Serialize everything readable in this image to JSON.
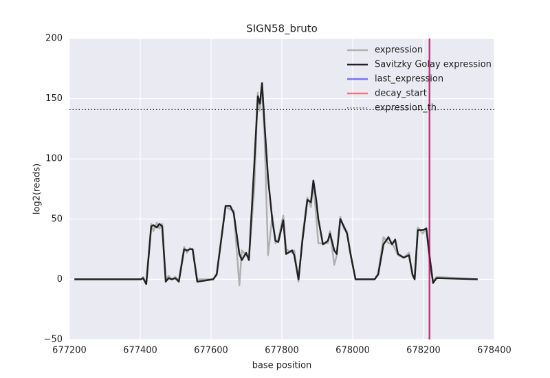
{
  "chart_data": {
    "type": "line",
    "title": "SIGN58_bruto",
    "xlabel": "base position",
    "ylabel": "log2(reads)",
    "xlim": [
      677200,
      678400
    ],
    "ylim": [
      -50,
      200
    ],
    "xticks": [
      677200,
      677400,
      677600,
      677800,
      678000,
      678200,
      678400
    ],
    "yticks": [
      {
        "value": -50,
        "label": "−50"
      },
      0,
      50,
      100,
      150,
      200
    ],
    "grid": true,
    "background": "#eaeaf2",
    "legend": "upper right",
    "series": [
      {
        "name": "expression",
        "color": "#b0b0b0",
        "width": 2.5,
        "dash": "none",
        "x": [
          677214,
          677402,
          677408,
          677417,
          677431,
          677437,
          677447,
          677454,
          677462,
          677472,
          677480,
          677489,
          677499,
          677509,
          677524,
          677532,
          677540,
          677548,
          677561,
          677606,
          677616,
          677641,
          677654,
          677664,
          677680,
          677687,
          677699,
          677707,
          677722,
          677732,
          677738,
          677744,
          677751,
          677761,
          677773,
          677782,
          677790,
          677804,
          677812,
          677829,
          677835,
          677847,
          677858,
          677872,
          677882,
          677889,
          677897,
          677903,
          677916,
          677930,
          677936,
          677948,
          677955,
          677965,
          677975,
          677984,
          677994,
          678008,
          678062,
          678072,
          678087,
          678101,
          678111,
          678120,
          678128,
          678144,
          678159,
          678169,
          678175,
          678184,
          678198,
          678208,
          678219,
          678227,
          678237,
          678353
        ],
        "values": [
          0,
          0,
          2,
          -3,
          46,
          40,
          47,
          42,
          46,
          0,
          3,
          0,
          2,
          -1,
          27,
          22,
          26,
          24,
          0,
          0,
          5,
          60,
          58,
          57,
          -5,
          24,
          20,
          18,
          75,
          155,
          140,
          160,
          120,
          20,
          53,
          30,
          33,
          53,
          25,
          22,
          24,
          -2,
          35,
          68,
          60,
          80,
          52,
          30,
          30,
          30,
          40,
          12,
          20,
          52,
          42,
          40,
          20,
          0,
          0,
          5,
          35,
          30,
          30,
          25,
          20,
          18,
          22,
          3,
          0,
          43,
          38,
          43,
          10,
          -2,
          2,
          0
        ]
      },
      {
        "name": "Savitzky Golay expression",
        "color": "#222222",
        "width": 2.5,
        "dash": "none",
        "x": [
          677214,
          677402,
          677408,
          677417,
          677431,
          677437,
          677447,
          677454,
          677462,
          677472,
          677480,
          677489,
          677499,
          677509,
          677524,
          677532,
          677540,
          677548,
          677561,
          677606,
          677616,
          677641,
          677654,
          677664,
          677680,
          677687,
          677699,
          677707,
          677722,
          677732,
          677738,
          677744,
          677751,
          677761,
          677773,
          677782,
          677790,
          677804,
          677812,
          677829,
          677835,
          677847,
          677858,
          677872,
          677882,
          677889,
          677897,
          677903,
          677916,
          677930,
          677936,
          677948,
          677955,
          677965,
          677975,
          677984,
          677994,
          678008,
          678062,
          678072,
          678087,
          678101,
          678111,
          678120,
          678128,
          678144,
          678159,
          678169,
          678175,
          678184,
          678198,
          678208,
          678219,
          678227,
          678237,
          678353
        ],
        "values": [
          0,
          0,
          1,
          -4,
          44,
          45,
          43,
          46,
          44,
          -2,
          1,
          0,
          1,
          -2,
          25,
          24,
          25,
          25,
          -2,
          0,
          4,
          61,
          61,
          55,
          21,
          16,
          22,
          16,
          95,
          152,
          146,
          163,
          129,
          84,
          49,
          32,
          31,
          49,
          21,
          24,
          20,
          0,
          32,
          66,
          64,
          82,
          66,
          50,
          29,
          32,
          38,
          24,
          21,
          50,
          44,
          38,
          21,
          0,
          0,
          4,
          29,
          35,
          29,
          33,
          21,
          18,
          20,
          4,
          0,
          41,
          41,
          42,
          15,
          -3,
          1,
          0
        ]
      },
      {
        "name": "last_expression",
        "color": "#0000ff",
        "opacity": 0.5,
        "width": 2.5,
        "dash": "none",
        "x": [
          678217,
          678217
        ],
        "values": [
          -50,
          200
        ]
      },
      {
        "name": "decay_start",
        "color": "#ff0000",
        "opacity": 0.5,
        "width": 2.5,
        "dash": "none",
        "x": [
          678217,
          678217
        ],
        "values": [
          -50,
          200
        ]
      },
      {
        "name": "expression_th",
        "color": "#333333",
        "width": 1.2,
        "dash": "1.5,3",
        "x": [
          677200,
          678400
        ],
        "values": [
          141,
          141
        ]
      }
    ]
  }
}
